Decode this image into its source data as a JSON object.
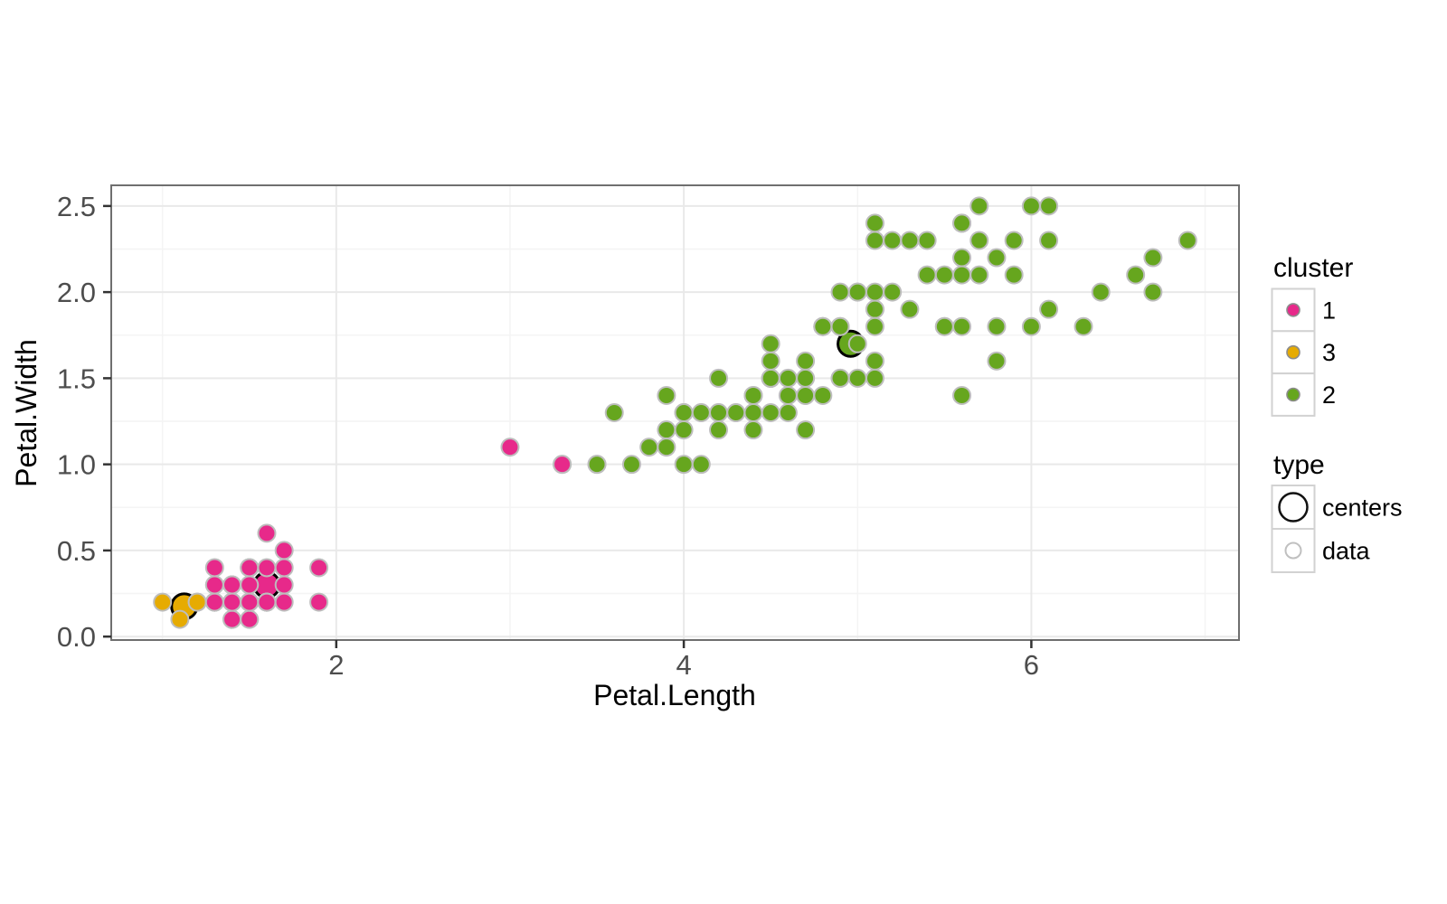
{
  "chart_data": {
    "type": "scatter",
    "title": "",
    "xlabel": "Petal.Length",
    "ylabel": "Petal.Width",
    "x_axis": {
      "range": [
        0.705,
        7.195
      ],
      "major_ticks": [
        {
          "v": 2,
          "label": "2"
        },
        {
          "v": 4,
          "label": "4"
        },
        {
          "v": 6,
          "label": "6"
        }
      ],
      "minor_ticks": [
        1,
        3,
        5,
        7
      ]
    },
    "y_axis": {
      "range": [
        -0.02,
        2.62
      ],
      "major_ticks": [
        {
          "v": 0.0,
          "label": "0.0"
        },
        {
          "v": 0.5,
          "label": "0.5"
        },
        {
          "v": 1.0,
          "label": "1.0"
        },
        {
          "v": 1.5,
          "label": "1.5"
        },
        {
          "v": 2.0,
          "label": "2.0"
        },
        {
          "v": 2.5,
          "label": "2.5"
        }
      ],
      "minor_ticks": [
        0.25,
        0.75,
        1.25,
        1.75,
        2.25
      ]
    },
    "grid": true,
    "legend_position": "right",
    "cluster_colors": {
      "1": "#e7298a",
      "2": "#66a61e",
      "3": "#e6ab02"
    },
    "centers": [
      [
        1.6,
        0.3,
        1
      ],
      [
        1.125,
        0.175,
        3
      ],
      [
        4.96,
        1.7,
        2
      ]
    ],
    "points": [
      [
        1.4,
        0.2,
        1
      ],
      [
        1.4,
        0.2,
        1
      ],
      [
        1.3,
        0.2,
        1
      ],
      [
        1.5,
        0.2,
        1
      ],
      [
        1.4,
        0.2,
        1
      ],
      [
        1.7,
        0.4,
        1
      ],
      [
        1.4,
        0.3,
        1
      ],
      [
        1.5,
        0.2,
        1
      ],
      [
        1.4,
        0.2,
        1
      ],
      [
        1.5,
        0.1,
        1
      ],
      [
        1.5,
        0.2,
        1
      ],
      [
        1.6,
        0.2,
        1
      ],
      [
        1.4,
        0.1,
        1
      ],
      [
        1.1,
        0.1,
        3
      ],
      [
        1.2,
        0.2,
        3
      ],
      [
        1.5,
        0.4,
        1
      ],
      [
        1.3,
        0.4,
        1
      ],
      [
        1.4,
        0.3,
        1
      ],
      [
        1.7,
        0.3,
        1
      ],
      [
        1.5,
        0.3,
        1
      ],
      [
        1.7,
        0.2,
        1
      ],
      [
        1.5,
        0.4,
        1
      ],
      [
        1.0,
        0.2,
        3
      ],
      [
        1.7,
        0.5,
        1
      ],
      [
        1.9,
        0.2,
        1
      ],
      [
        1.6,
        0.2,
        1
      ],
      [
        1.6,
        0.4,
        1
      ],
      [
        1.5,
        0.2,
        1
      ],
      [
        1.4,
        0.2,
        1
      ],
      [
        1.6,
        0.2,
        1
      ],
      [
        1.6,
        0.2,
        1
      ],
      [
        1.5,
        0.4,
        1
      ],
      [
        1.5,
        0.1,
        1
      ],
      [
        1.4,
        0.2,
        1
      ],
      [
        1.5,
        0.2,
        1
      ],
      [
        1.2,
        0.2,
        3
      ],
      [
        1.3,
        0.2,
        1
      ],
      [
        1.4,
        0.1,
        1
      ],
      [
        1.3,
        0.2,
        1
      ],
      [
        1.5,
        0.2,
        1
      ],
      [
        1.3,
        0.3,
        1
      ],
      [
        1.3,
        0.3,
        1
      ],
      [
        1.3,
        0.2,
        1
      ],
      [
        1.6,
        0.6,
        1
      ],
      [
        1.9,
        0.4,
        1
      ],
      [
        1.4,
        0.3,
        1
      ],
      [
        1.6,
        0.2,
        1
      ],
      [
        1.4,
        0.2,
        1
      ],
      [
        1.5,
        0.2,
        1
      ],
      [
        1.4,
        0.2,
        1
      ],
      [
        4.7,
        1.4,
        2
      ],
      [
        4.5,
        1.5,
        2
      ],
      [
        4.9,
        1.5,
        2
      ],
      [
        4.0,
        1.3,
        2
      ],
      [
        4.6,
        1.5,
        2
      ],
      [
        4.5,
        1.3,
        2
      ],
      [
        4.7,
        1.6,
        2
      ],
      [
        3.3,
        1.0,
        1
      ],
      [
        4.6,
        1.3,
        2
      ],
      [
        3.9,
        1.4,
        2
      ],
      [
        3.5,
        1.0,
        2
      ],
      [
        4.2,
        1.5,
        2
      ],
      [
        4.0,
        1.0,
        2
      ],
      [
        4.7,
        1.4,
        2
      ],
      [
        3.6,
        1.3,
        2
      ],
      [
        4.4,
        1.4,
        2
      ],
      [
        4.5,
        1.5,
        2
      ],
      [
        4.1,
        1.0,
        2
      ],
      [
        4.5,
        1.5,
        2
      ],
      [
        3.9,
        1.1,
        2
      ],
      [
        4.8,
        1.8,
        2
      ],
      [
        4.0,
        1.3,
        2
      ],
      [
        4.9,
        1.5,
        2
      ],
      [
        4.7,
        1.2,
        2
      ],
      [
        4.3,
        1.3,
        2
      ],
      [
        4.4,
        1.4,
        2
      ],
      [
        4.8,
        1.4,
        2
      ],
      [
        5.0,
        1.7,
        2
      ],
      [
        4.5,
        1.5,
        2
      ],
      [
        3.5,
        1.0,
        2
      ],
      [
        3.8,
        1.1,
        2
      ],
      [
        3.7,
        1.0,
        2
      ],
      [
        3.9,
        1.2,
        2
      ],
      [
        5.1,
        1.6,
        2
      ],
      [
        4.5,
        1.5,
        2
      ],
      [
        4.5,
        1.6,
        2
      ],
      [
        4.7,
        1.5,
        2
      ],
      [
        4.4,
        1.3,
        2
      ],
      [
        4.1,
        1.3,
        2
      ],
      [
        4.0,
        1.3,
        2
      ],
      [
        4.4,
        1.2,
        2
      ],
      [
        4.6,
        1.4,
        2
      ],
      [
        4.0,
        1.2,
        2
      ],
      [
        3.3,
        1.0,
        1
      ],
      [
        4.2,
        1.3,
        2
      ],
      [
        4.2,
        1.2,
        2
      ],
      [
        4.2,
        1.3,
        2
      ],
      [
        4.3,
        1.3,
        2
      ],
      [
        3.0,
        1.1,
        1
      ],
      [
        4.1,
        1.3,
        2
      ],
      [
        6.0,
        2.5,
        2
      ],
      [
        5.1,
        1.9,
        2
      ],
      [
        5.9,
        2.1,
        2
      ],
      [
        5.6,
        1.8,
        2
      ],
      [
        5.8,
        2.2,
        2
      ],
      [
        6.6,
        2.1,
        2
      ],
      [
        4.5,
        1.7,
        2
      ],
      [
        6.3,
        1.8,
        2
      ],
      [
        5.8,
        1.8,
        2
      ],
      [
        6.1,
        2.5,
        2
      ],
      [
        5.1,
        2.0,
        2
      ],
      [
        5.3,
        1.9,
        2
      ],
      [
        5.5,
        2.1,
        2
      ],
      [
        5.0,
        2.0,
        2
      ],
      [
        5.1,
        2.4,
        2
      ],
      [
        5.3,
        2.3,
        2
      ],
      [
        5.5,
        1.8,
        2
      ],
      [
        6.7,
        2.2,
        2
      ],
      [
        6.9,
        2.3,
        2
      ],
      [
        5.0,
        1.5,
        2
      ],
      [
        5.7,
        2.3,
        2
      ],
      [
        4.9,
        2.0,
        2
      ],
      [
        6.7,
        2.0,
        2
      ],
      [
        4.9,
        1.8,
        2
      ],
      [
        5.7,
        2.1,
        2
      ],
      [
        6.0,
        1.8,
        2
      ],
      [
        4.8,
        1.8,
        2
      ],
      [
        4.9,
        1.8,
        2
      ],
      [
        5.6,
        2.1,
        2
      ],
      [
        5.8,
        1.6,
        2
      ],
      [
        6.1,
        1.9,
        2
      ],
      [
        6.4,
        2.0,
        2
      ],
      [
        5.6,
        2.2,
        2
      ],
      [
        5.1,
        1.5,
        2
      ],
      [
        5.6,
        1.4,
        2
      ],
      [
        6.1,
        2.3,
        2
      ],
      [
        5.6,
        2.4,
        2
      ],
      [
        5.5,
        1.8,
        2
      ],
      [
        4.8,
        1.8,
        2
      ],
      [
        5.4,
        2.1,
        2
      ],
      [
        5.6,
        2.4,
        2
      ],
      [
        5.1,
        2.3,
        2
      ],
      [
        5.1,
        1.9,
        2
      ],
      [
        5.9,
        2.3,
        2
      ],
      [
        5.7,
        2.5,
        2
      ],
      [
        5.2,
        2.3,
        2
      ],
      [
        5.0,
        2.0,
        2
      ],
      [
        5.2,
        2.0,
        2
      ],
      [
        5.4,
        2.3,
        2
      ],
      [
        5.1,
        1.8,
        2
      ]
    ]
  },
  "legend": {
    "cluster": {
      "title": "cluster",
      "items": [
        {
          "label": "1",
          "color": "#e7298a"
        },
        {
          "label": "3",
          "color": "#e6ab02"
        },
        {
          "label": "2",
          "color": "#66a61e"
        }
      ]
    },
    "type": {
      "title": "type",
      "items": [
        {
          "label": "centers",
          "kind": "centers"
        },
        {
          "label": "data",
          "kind": "data"
        }
      ]
    }
  },
  "style": {
    "point_stroke": "#bdbdbd",
    "center_stroke": "#000000",
    "panel_border": "#6f6f6f",
    "grid_major": "#e9e9e9",
    "grid_minor": "#f4f4f4",
    "tick_color": "#333333",
    "legend_box_border": "#d2d2d2"
  }
}
